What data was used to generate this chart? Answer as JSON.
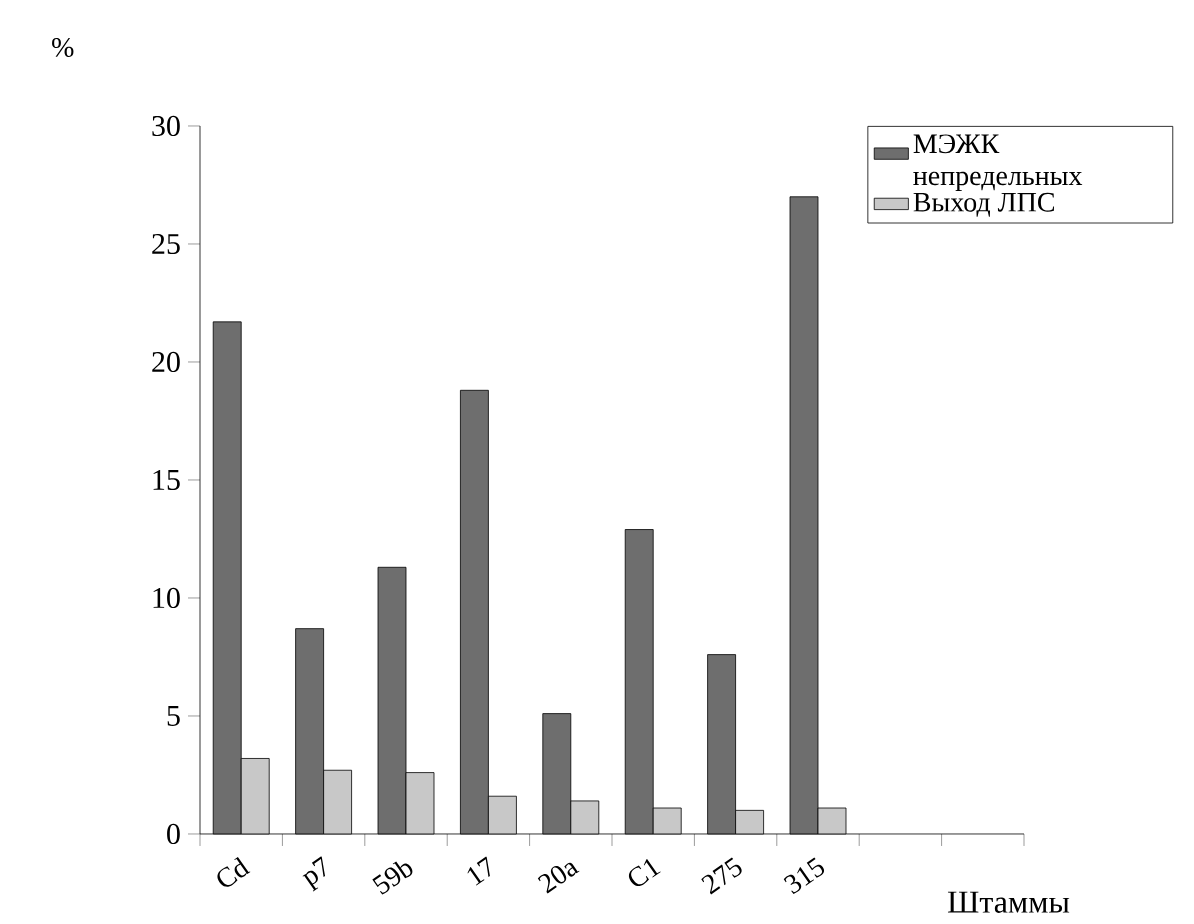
{
  "chart_data": {
    "type": "bar",
    "ylabel": "%",
    "xlabel": "Штаммы",
    "categories": [
      "Cd",
      "p7",
      "59b",
      "17",
      "20a",
      "C1",
      "275",
      "315",
      null,
      null
    ],
    "series": [
      {
        "name": "МЭЖК непредельных",
        "color": "#6e6e6e",
        "values": [
          21.7,
          8.7,
          11.3,
          18.8,
          5.1,
          12.9,
          7.6,
          27.0,
          null,
          null
        ]
      },
      {
        "name": "Выход ЛПС",
        "color": "#c8c8c8",
        "values": [
          3.2,
          2.7,
          2.6,
          1.6,
          1.4,
          1.1,
          1.0,
          1.1,
          null,
          null
        ]
      }
    ],
    "ylim": [
      0,
      30
    ],
    "yticks": [
      0,
      5,
      10,
      15,
      20,
      25,
      30
    ],
    "grid": false,
    "legend": "top right"
  }
}
